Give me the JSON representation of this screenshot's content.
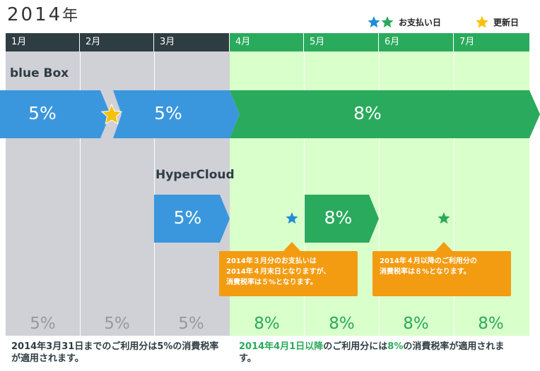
{
  "header": {
    "year": "2014",
    "year_suffix": "年",
    "legend": {
      "payment_label": "お支払い日",
      "renewal_label": "更新日"
    }
  },
  "months": [
    "1月",
    "2月",
    "3月",
    "4月",
    "5月",
    "6月",
    "7月"
  ],
  "colors": {
    "dark_header": "#2e3d42",
    "green": "#2aaa5c",
    "blue": "#3a97dd",
    "orange": "#f39c12",
    "gold_star": "#f4c20d",
    "gray_bg": "#d0d0d7",
    "green_bg": "#d9ffca"
  },
  "products": {
    "bluebox": {
      "name": "blue Box",
      "rate_before": "5%",
      "rate_mid": "5%",
      "rate_after": "8%"
    },
    "hypercloud": {
      "name": "HyperCloud",
      "rate_before": "5%",
      "rate_after": "8%",
      "tip_march": [
        "2014年３月分のお支払いは",
        "2014年４月末日となりますが、",
        "消費税率は５%となります。"
      ],
      "tip_april": [
        "2014年４月以降のご利用分の",
        "消費税率は８%となります。"
      ]
    }
  },
  "bottom_rates": [
    "5%",
    "5%",
    "5%",
    "8%",
    "8%",
    "8%",
    "8%"
  ],
  "notes": {
    "left": "2014年3月31日までのご利用分は5%の消費税率が適用されます。",
    "right_prefix": "2014年4月1日以降",
    "right_mid": "のご利用分には",
    "right_rate": "8%",
    "right_suffix": "の消費税率が適用されます。"
  }
}
